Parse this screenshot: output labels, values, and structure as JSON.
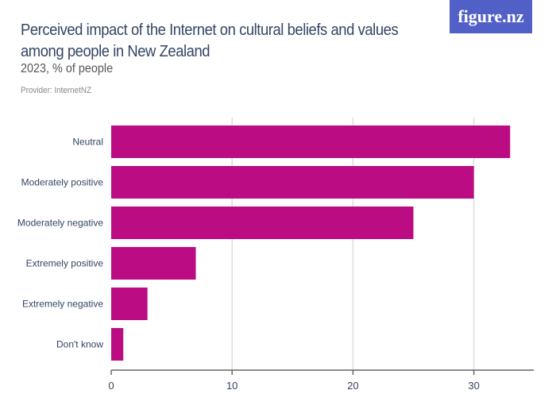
{
  "header": {
    "title": "Perceived impact of the Internet on cultural beliefs and values among people in New Zealand",
    "subtitle": "2023, % of people",
    "provider": "Provider: InternetNZ",
    "logo_text": "figure.nz"
  },
  "colors": {
    "bar": "#bb0c84",
    "logo_bg": "#5160c7",
    "grid": "#dddddd",
    "text": "#344563"
  },
  "chart_data": {
    "type": "bar",
    "orientation": "horizontal",
    "title": "Perceived impact of the Internet on cultural beliefs and values among people in New Zealand",
    "subtitle": "2023, % of people",
    "categories": [
      "Neutral",
      "Moderately positive",
      "Moderately negative",
      "Extremely positive",
      "Extremely negative",
      "Don't know"
    ],
    "values": [
      33,
      30,
      25,
      7,
      3,
      1
    ],
    "xlim": [
      0,
      35
    ],
    "xticks": [
      "0",
      "10",
      "20",
      "30"
    ],
    "grid": true
  }
}
